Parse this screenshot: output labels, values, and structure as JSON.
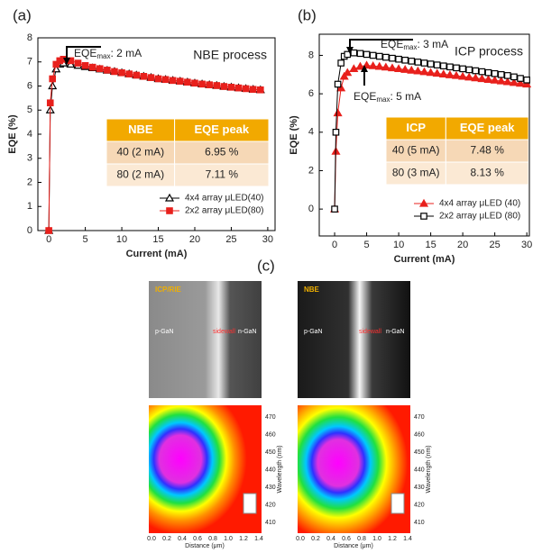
{
  "chart_data": [
    {
      "type": "line",
      "panel_label": "(a)",
      "title": "NBE process",
      "xlabel": "Current (mA)",
      "ylabel": "EQE (%)",
      "x": [
        0,
        0.2,
        0.5,
        1,
        1.5,
        2,
        3,
        4,
        5,
        6,
        7,
        8,
        9,
        10,
        11,
        12,
        13,
        14,
        15,
        16,
        17,
        18,
        19,
        20,
        21,
        22,
        23,
        24,
        25,
        26,
        27,
        28,
        29
      ],
      "series": [
        {
          "name": "4x4 array μLED(40)",
          "color": "#000000",
          "marker": "triangle-open",
          "values": [
            0,
            5.0,
            6.0,
            6.7,
            6.9,
            6.95,
            6.9,
            6.85,
            6.8,
            6.75,
            6.7,
            6.65,
            6.6,
            6.55,
            6.5,
            6.45,
            6.4,
            6.35,
            6.3,
            6.27,
            6.23,
            6.2,
            6.16,
            6.12,
            6.08,
            6.05,
            6.02,
            5.98,
            5.95,
            5.92,
            5.89,
            5.86,
            5.84
          ]
        },
        {
          "name": "2x2 array μLED(80)",
          "color": "#e8201c",
          "marker": "square",
          "values": [
            0,
            5.3,
            6.3,
            6.9,
            7.05,
            7.11,
            7.05,
            6.95,
            6.85,
            6.78,
            6.72,
            6.66,
            6.6,
            6.55,
            6.5,
            6.45,
            6.4,
            6.35,
            6.3,
            6.27,
            6.23,
            6.2,
            6.16,
            6.12,
            6.08,
            6.05,
            6.02,
            5.98,
            5.95,
            5.92,
            5.89,
            5.86,
            5.84
          ]
        }
      ],
      "xlim": [
        -1.5,
        31
      ],
      "ylim": [
        0,
        8
      ],
      "xticks": [
        0,
        5,
        10,
        15,
        20,
        25,
        30
      ],
      "yticks": [
        0,
        1,
        2,
        3,
        4,
        5,
        6,
        7,
        8
      ],
      "legend": "lower right",
      "annotations": [
        {
          "text": "EQE",
          "sub": "max",
          "rest": ": 2 mA"
        }
      ],
      "table": {
        "header": [
          "NBE",
          "EQE peak"
        ],
        "rows": [
          [
            "40 (2 mA)",
            "6.95 %"
          ],
          [
            "80 (2 mA)",
            "7.11 %"
          ]
        ]
      }
    },
    {
      "type": "line",
      "panel_label": "(b)",
      "title": "ICP process",
      "xlabel": "Current (mA)",
      "ylabel": "EQE (%)",
      "x": [
        0,
        0.2,
        0.5,
        1,
        1.5,
        2,
        3,
        4,
        5,
        6,
        7,
        8,
        9,
        10,
        11,
        12,
        13,
        14,
        15,
        16,
        17,
        18,
        19,
        20,
        21,
        22,
        23,
        24,
        25,
        26,
        27,
        28,
        29,
        30
      ],
      "series": [
        {
          "name": "4x4 array μLED (40)",
          "color": "#e8201c",
          "marker": "triangle",
          "values": [
            0,
            3,
            5,
            6.3,
            6.9,
            7.1,
            7.3,
            7.42,
            7.48,
            7.45,
            7.42,
            7.38,
            7.34,
            7.3,
            7.26,
            7.22,
            7.18,
            7.14,
            7.1,
            7.06,
            7.02,
            6.98,
            6.94,
            6.9,
            6.86,
            6.82,
            6.78,
            6.74,
            6.7,
            6.66,
            6.62,
            6.58,
            6.54,
            6.5
          ]
        },
        {
          "name": "2x2 array μLED (80)",
          "color": "#000000",
          "marker": "square-open",
          "values": [
            0,
            4,
            6.5,
            7.6,
            7.95,
            8.05,
            8.13,
            8.1,
            8.05,
            8.0,
            7.95,
            7.9,
            7.85,
            7.8,
            7.75,
            7.7,
            7.65,
            7.6,
            7.55,
            7.5,
            7.45,
            7.4,
            7.35,
            7.3,
            7.25,
            7.2,
            7.15,
            7.1,
            7.05,
            7.0,
            6.95,
            6.88,
            6.8,
            6.72
          ]
        }
      ],
      "xlim": [
        -2.4,
        30.4
      ],
      "ylim": [
        -1.4,
        9.1
      ],
      "xticks": [
        0,
        5,
        10,
        15,
        20,
        25,
        30
      ],
      "yticks": [
        0,
        2,
        4,
        6,
        8
      ],
      "legend": "lower right",
      "annotations": [
        {
          "text": "EQE",
          "sub": "max",
          "rest": ": 3 mA"
        },
        {
          "text": "EQE",
          "sub": "max",
          "rest": ": 5 mA"
        }
      ],
      "table": {
        "header": [
          "ICP",
          "EQE peak"
        ],
        "rows": [
          [
            "40 (5 mA)",
            "7.48 %"
          ],
          [
            "80 (3 mA)",
            "8.13 %"
          ]
        ]
      }
    }
  ],
  "panel_c": {
    "label": "(c)",
    "images": [
      {
        "title": "ICP/RIE",
        "left": "p-GaN",
        "mid": "sidewall",
        "right": "n-GaN"
      },
      {
        "title": "NBE",
        "left": "p-GaN",
        "mid": "sidewall",
        "right": "n-GaN"
      }
    ],
    "xlabel": "Distance (μm)",
    "ylabel": "Wavelength (nm)",
    "xticks": [
      "0.0",
      "0.2",
      "0.4",
      "0.6",
      "0.8",
      "1.0",
      "1.2",
      "1.4"
    ],
    "yticks": [
      "410",
      "420",
      "430",
      "440",
      "450",
      "460",
      "470"
    ]
  }
}
